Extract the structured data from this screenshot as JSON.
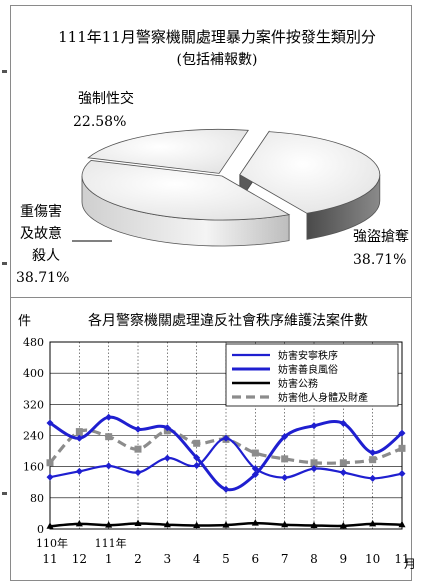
{
  "chart_data": [
    {
      "type": "pie",
      "title": "111年11月警察機關處理暴力案件按發生類別分",
      "subtitle": "(包括補報數)",
      "slices": [
        {
          "label": "強盜搶奪",
          "value": 38.71,
          "value_label": "38.71%",
          "color": "#6e6e6e"
        },
        {
          "label": "重傷害及故意殺人",
          "label_lines": [
            "重傷害",
            "及故意",
            "殺人"
          ],
          "value": 38.71,
          "value_label": "38.71%",
          "color": "#f2f2f2"
        },
        {
          "label": "強制性交",
          "value": 22.58,
          "value_label": "22.58%",
          "color": "#f2f2f2"
        }
      ]
    },
    {
      "type": "line",
      "title": "各月警察機關處理違反社會秩序維護法案件數",
      "ylabel": "件",
      "xlabel": "月",
      "categories": [
        "11",
        "12",
        "1",
        "2",
        "3",
        "4",
        "5",
        "6",
        "7",
        "8",
        "9",
        "10",
        "11"
      ],
      "year_labels": [
        {
          "index": 0,
          "text": "110年"
        },
        {
          "index": 2,
          "text": "111年"
        }
      ],
      "ylim": [
        0,
        480
      ],
      "yticks": [
        "0",
        "80",
        "160",
        "240",
        "320",
        "400",
        "480"
      ],
      "grid": true,
      "legend_position": "top-right",
      "series": [
        {
          "name": "妨害安寧秩序",
          "color": "#1f1fd0",
          "values": [
            133,
            148,
            162,
            145,
            182,
            163,
            233,
            155,
            132,
            155,
            145,
            130,
            142
          ]
        },
        {
          "name": "妨害善良風俗",
          "color": "#1f1fd0",
          "values": [
            272,
            233,
            287,
            256,
            260,
            183,
            102,
            140,
            237,
            265,
            271,
            196,
            246
          ]
        },
        {
          "name": "妨害公務",
          "color": "#000000",
          "values": [
            7,
            13,
            10,
            14,
            11,
            9,
            10,
            15,
            11,
            9,
            8,
            13,
            11
          ]
        },
        {
          "name": "妨害他人身體及財產",
          "color": "#8c8c8c",
          "values": [
            170,
            250,
            237,
            205,
            252,
            220,
            230,
            195,
            180,
            170,
            170,
            178,
            207
          ]
        }
      ]
    }
  ]
}
